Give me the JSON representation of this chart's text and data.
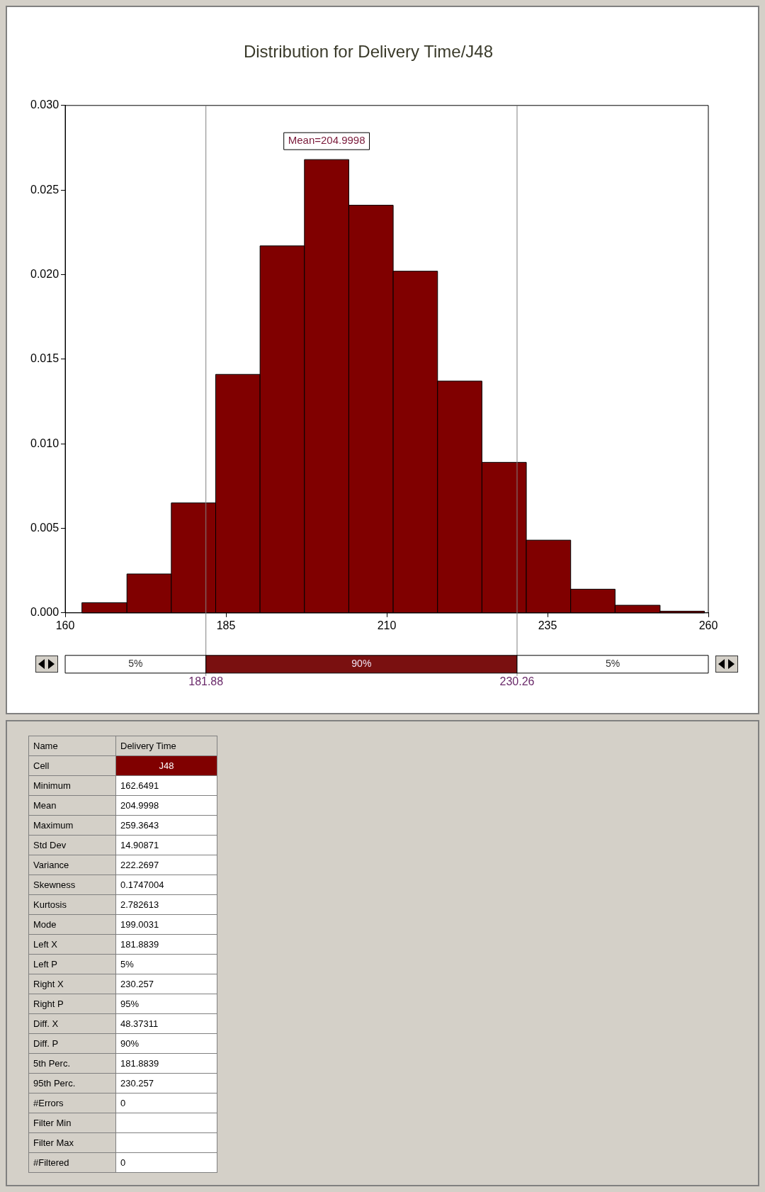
{
  "chart_data": {
    "type": "histogram",
    "title": "Distribution for Delivery Time/J48",
    "bins": [
      162.6,
      169.6,
      176.5,
      183.4,
      190.3,
      197.2,
      204.1,
      211.0,
      217.9,
      224.8,
      231.7,
      238.6,
      245.5,
      252.5,
      259.4
    ],
    "values": [
      0.0006,
      0.0023,
      0.0065,
      0.0141,
      0.0217,
      0.0268,
      0.0241,
      0.0202,
      0.0137,
      0.0089,
      0.0043,
      0.0014,
      0.00045,
      0.0001
    ],
    "color": "#800000",
    "xlim": [
      160,
      260
    ],
    "xticks": [
      160,
      185,
      210,
      235,
      260
    ],
    "ylim": [
      0,
      0.03
    ],
    "yticks": [
      {
        "value": 0,
        "label": "0.000"
      },
      {
        "value": 0.005,
        "label": "0.005"
      },
      {
        "value": 0.01,
        "label": "0.010"
      },
      {
        "value": 0.015,
        "label": "0.015"
      },
      {
        "value": 0.02,
        "label": "0.020"
      },
      {
        "value": 0.025,
        "label": "0.025"
      },
      {
        "value": 0.03,
        "label": "0.030"
      }
    ],
    "grid": false,
    "legend": false,
    "ref_lines": [
      {
        "axis": "x",
        "value": 181.88,
        "label": "181.88",
        "color": "#808080"
      },
      {
        "axis": "x",
        "value": 230.26,
        "label": "230.26",
        "color": "#808080"
      }
    ],
    "annotations": [
      "Mean=204.9998",
      "5%",
      "90%",
      "5%",
      "Name",
      "Delivery Time",
      "Cell",
      "J48",
      "Minimum",
      "162.6491",
      "Mean",
      "204.9998",
      "Maximum",
      "259.3643",
      "Std Dev",
      "14.90871",
      "Variance",
      "222.2697",
      "Skewness",
      "0.1747004",
      "Kurtosis",
      "2.782613",
      "Mode",
      "199.0031",
      "Left X",
      "181.8839",
      "Left P",
      "5%",
      "Right X",
      "230.257",
      "Right P",
      "95%",
      "Diff. X",
      "48.37311",
      "Diff. P",
      "90%",
      "5th Perc.",
      "181.8839",
      "95th Perc.",
      "230.257",
      "#Errors",
      "0",
      "Filter Min",
      null,
      "Filter Max",
      null,
      "#Filtered",
      "0"
    ]
  }
}
